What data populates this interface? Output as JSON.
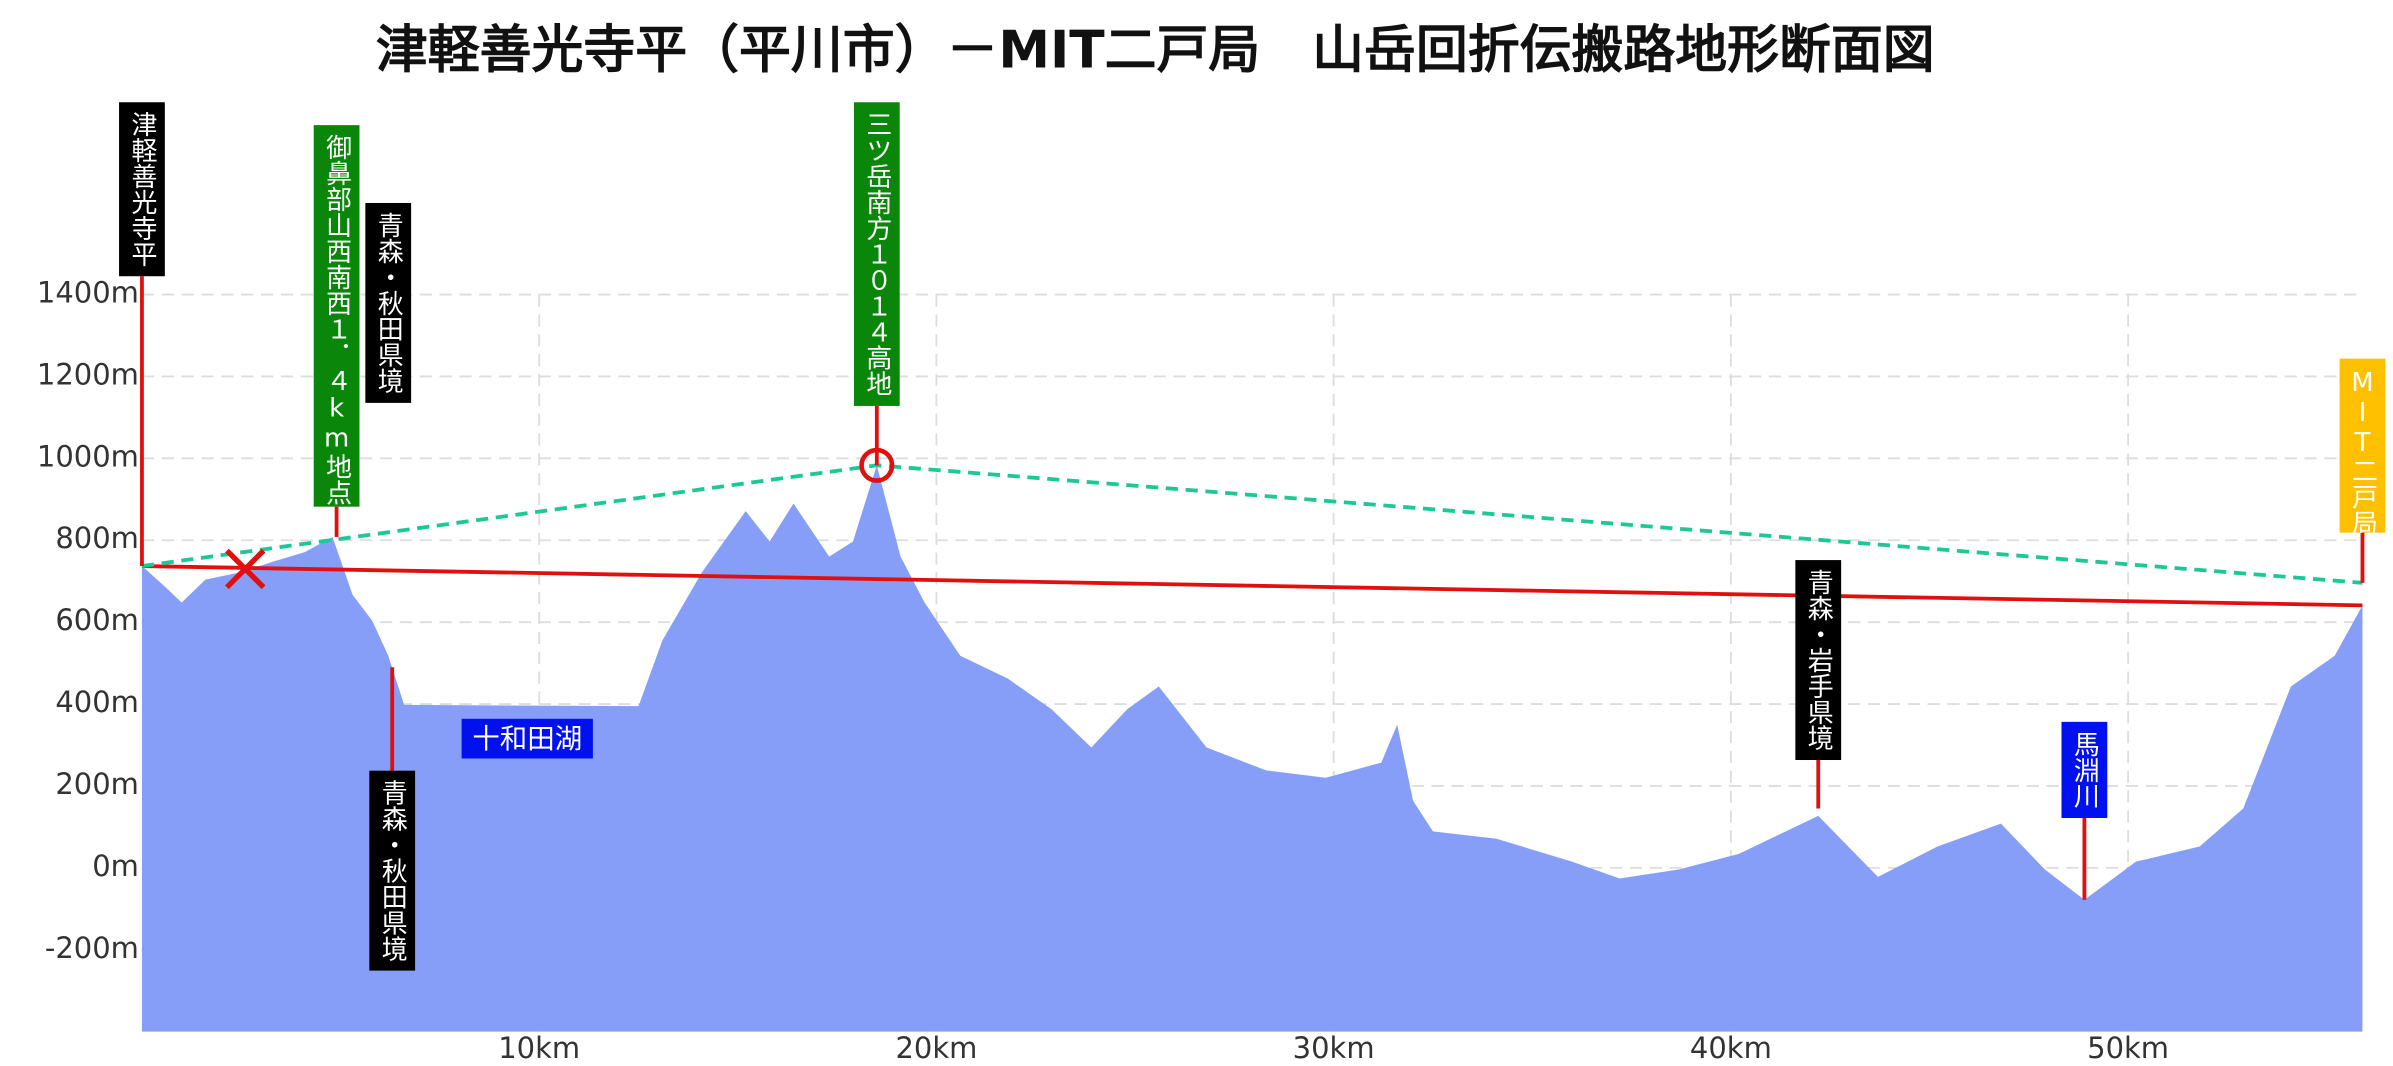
{
  "chart_data": {
    "type": "area",
    "title": "津軽善光寺平（平川市）－MIT二戸局　山岳回折伝搬路地形断面図",
    "x": [
      0,
      0.6,
      1.0,
      1.6,
      2.5,
      3.3,
      4.1,
      4.8,
      5.3,
      5.8,
      6.2,
      6.6,
      12.5,
      13.1,
      14.1,
      15.2,
      15.8,
      16.4,
      17.3,
      17.9,
      18.5,
      19.1,
      19.7,
      20.6,
      21.8,
      22.9,
      23.9,
      24.8,
      25.6,
      26.8,
      28.3,
      29.8,
      31.2,
      31.6,
      32.0,
      32.5,
      34.1,
      36.0,
      37.2,
      38.7,
      40.2,
      42.2,
      43.7,
      45.2,
      46.8,
      47.9,
      48.9,
      50.2,
      51.8,
      52.9,
      54.1,
      55.2,
      55.9
    ],
    "values": [
      737,
      685,
      648,
      704,
      722,
      748,
      771,
      808,
      667,
      603,
      518,
      398,
      395,
      555,
      722,
      871,
      797,
      890,
      760,
      797,
      983,
      760,
      648,
      518,
      462,
      387,
      294,
      387,
      443,
      294,
      238,
      220,
      257,
      350,
      164,
      89,
      71,
      15,
      -26,
      -4,
      34,
      127,
      -22,
      52,
      108,
      -4,
      -78,
      15,
      52,
      145,
      443,
      518,
      641
    ],
    "color": "#7f99f8",
    "xlim": [
      0,
      55.9
    ],
    "ylim": [
      -400,
      1400
    ],
    "xticks": [
      {
        "value": 10,
        "label": "10km"
      },
      {
        "value": 20,
        "label": "20km"
      },
      {
        "value": 30,
        "label": "30km"
      },
      {
        "value": 40,
        "label": "40km"
      },
      {
        "value": 50,
        "label": "50km"
      }
    ],
    "yticks": [
      {
        "value": -200,
        "label": "-200m"
      },
      {
        "value": 0,
        "label": "0m"
      },
      {
        "value": 200,
        "label": "200m"
      },
      {
        "value": 400,
        "label": "400m"
      },
      {
        "value": 600,
        "label": "600m"
      },
      {
        "value": 800,
        "label": "800m"
      },
      {
        "value": 1000,
        "label": "1000m"
      },
      {
        "value": 1200,
        "label": "1200m"
      },
      {
        "value": 1400,
        "label": "1400m"
      }
    ],
    "grid": true,
    "lines": [
      {
        "color": "#e01010",
        "x": [
          0,
          55.9
        ],
        "values": [
          737,
          641
        ]
      },
      {
        "color": "#1ec896",
        "dashed": true,
        "x": [
          0,
          18.5,
          55.9
        ],
        "values": [
          737,
          983,
          696
        ]
      }
    ],
    "markers": [
      {
        "shape": "cross",
        "color": "#e01010",
        "x": 2.6,
        "value": 730
      },
      {
        "shape": "circle",
        "color": "#e01010",
        "x": 18.5,
        "value": 983
      }
    ],
    "annotations": [
      {
        "text": "津軽善光寺平",
        "color": "#000000",
        "x": 0,
        "value": 737
      },
      {
        "text": "御鼻部山西南西１．４km地点",
        "color": "#0a870a",
        "x": 4.9,
        "value": 808
      },
      {
        "text": "青森・秋田県境",
        "color": "#000000",
        "x": 6.2
      },
      {
        "text": "青森・秋田県境",
        "color": "#000000",
        "x": 6.3,
        "value": 490
      },
      {
        "text": "三ツ岳南方１０１４高地",
        "color": "#0a870a",
        "x": 18.5,
        "value": 983
      },
      {
        "text": "MIT二戸局",
        "color": "#ffc000",
        "x": 55.9,
        "value": 696
      },
      {
        "text": "青森・岩手県境",
        "color": "#000000",
        "x": 42.2,
        "value": 145
      },
      {
        "text": "馬淵川",
        "color": "#0010ee",
        "x": 48.9,
        "value": -78
      },
      {
        "text": "十和田湖",
        "color": "#0010ee",
        "x": 9.7
      }
    ]
  }
}
